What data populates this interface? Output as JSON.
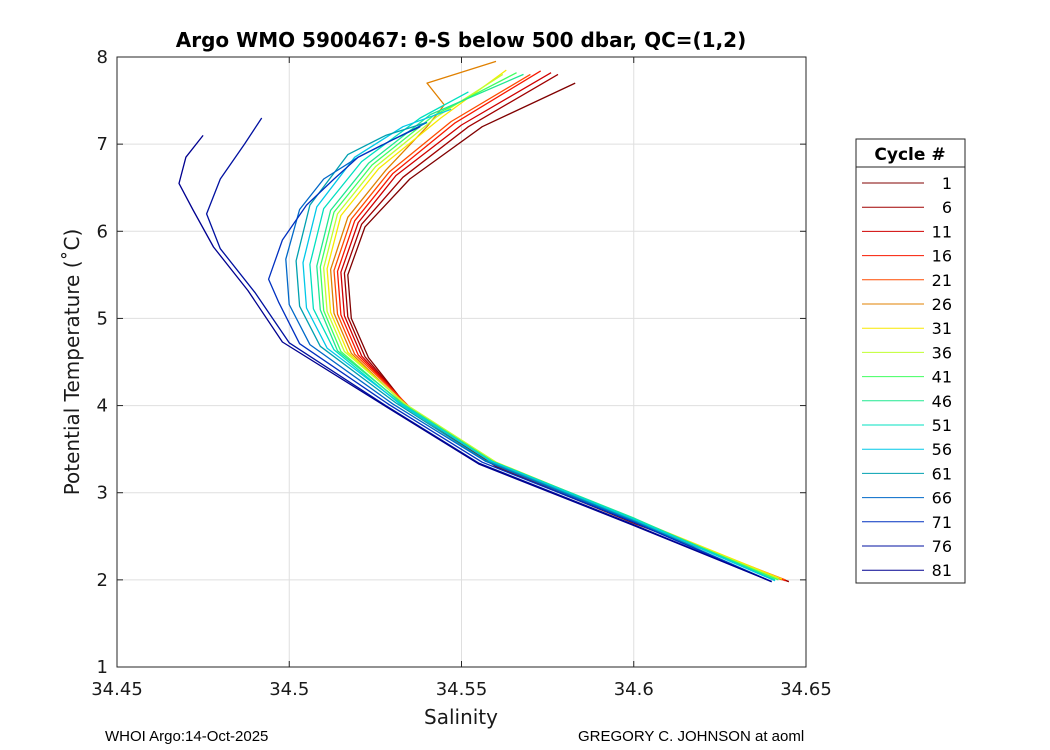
{
  "chart_data": {
    "type": "line",
    "title": "Argo WMO 5900467: θ-S below 500 dbar,  QC=(1,2)",
    "xlabel": "Salinity",
    "ylabel": "Potential Temperature (˚C)",
    "xlim": [
      34.45,
      34.65
    ],
    "ylim": [
      1,
      8
    ],
    "xticks": [
      34.45,
      34.5,
      34.55,
      34.6,
      34.65
    ],
    "xtick_labels": [
      "34.45",
      "34.5",
      "34.55",
      "34.6",
      "34.65"
    ],
    "yticks": [
      1,
      2,
      3,
      4,
      5,
      6,
      7,
      8
    ],
    "ytick_labels": [
      "1",
      "2",
      "3",
      "4",
      "5",
      "6",
      "7",
      "8"
    ],
    "grid": true,
    "legend_title": "Cycle #",
    "legend_position": "right",
    "series": [
      {
        "name": "1",
        "color": "#800000",
        "x": [
          34.645,
          34.6,
          34.56,
          34.535,
          34.523,
          34.518,
          34.517,
          34.522,
          34.535,
          34.556,
          34.583
        ],
        "y": [
          1.98,
          2.65,
          3.3,
          3.95,
          4.55,
          5.0,
          5.5,
          6.05,
          6.6,
          7.2,
          7.7
        ]
      },
      {
        "name": "6",
        "color": "#a00000",
        "x": [
          34.645,
          34.6,
          34.56,
          34.535,
          34.522,
          34.517,
          34.516,
          34.521,
          34.533,
          34.552,
          34.578
        ],
        "y": [
          1.98,
          2.66,
          3.31,
          3.96,
          4.56,
          5.02,
          5.52,
          6.08,
          6.62,
          7.2,
          7.8
        ]
      },
      {
        "name": "11",
        "color": "#d00000",
        "x": [
          34.644,
          34.6,
          34.56,
          34.535,
          34.521,
          34.516,
          34.515,
          34.52,
          34.531,
          34.55,
          34.576
        ],
        "y": [
          1.99,
          2.67,
          3.32,
          3.97,
          4.57,
          5.03,
          5.53,
          6.1,
          6.64,
          7.22,
          7.82
        ]
      },
      {
        "name": "16",
        "color": "#f81800",
        "x": [
          34.644,
          34.6,
          34.56,
          34.535,
          34.52,
          34.515,
          34.514,
          34.519,
          34.53,
          34.548,
          34.573
        ],
        "y": [
          1.99,
          2.67,
          3.32,
          3.98,
          4.58,
          5.04,
          5.54,
          6.12,
          6.66,
          7.24,
          7.84
        ]
      },
      {
        "name": "21",
        "color": "#ff4c00",
        "x": [
          34.644,
          34.6,
          34.56,
          34.535,
          34.519,
          34.514,
          34.513,
          34.518,
          34.529,
          34.547,
          34.57
        ],
        "y": [
          2.0,
          2.68,
          3.33,
          3.98,
          4.59,
          5.05,
          5.55,
          6.14,
          6.68,
          7.26,
          7.8
        ]
      },
      {
        "name": "26",
        "color": "#e08000",
        "x": [
          34.643,
          34.6,
          34.56,
          34.534,
          34.518,
          34.513,
          34.512,
          34.517,
          34.528,
          34.54,
          34.545,
          34.54,
          34.56
        ],
        "y": [
          2.0,
          2.69,
          3.34,
          3.99,
          4.6,
          5.06,
          5.56,
          6.16,
          6.7,
          7.2,
          7.45,
          7.7,
          7.95
        ]
      },
      {
        "name": "31",
        "color": "#f8e800",
        "x": [
          34.643,
          34.6,
          34.56,
          34.534,
          34.517,
          34.512,
          34.511,
          34.515,
          34.526,
          34.544,
          34.563
        ],
        "y": [
          2.01,
          2.7,
          3.35,
          4.0,
          4.61,
          5.07,
          5.57,
          6.18,
          6.72,
          7.3,
          7.85
        ]
      },
      {
        "name": "36",
        "color": "#c0ff30",
        "x": [
          34.642,
          34.6,
          34.56,
          34.534,
          34.516,
          34.511,
          34.51,
          34.514,
          34.525,
          34.543,
          34.562
        ],
        "y": [
          2.01,
          2.7,
          3.35,
          4.01,
          4.62,
          5.08,
          5.58,
          6.2,
          6.74,
          7.32,
          7.8
        ]
      },
      {
        "name": "41",
        "color": "#40ff60",
        "x": [
          34.642,
          34.6,
          34.559,
          34.533,
          34.515,
          34.51,
          34.509,
          34.513,
          34.524,
          34.542,
          34.566
        ],
        "y": [
          2.0,
          2.7,
          3.36,
          4.01,
          4.62,
          5.09,
          5.59,
          6.22,
          6.76,
          7.33,
          7.82
        ]
      },
      {
        "name": "46",
        "color": "#20e890",
        "x": [
          34.641,
          34.6,
          34.559,
          34.533,
          34.514,
          34.509,
          34.508,
          34.512,
          34.523,
          34.541,
          34.568
        ],
        "y": [
          2.0,
          2.71,
          3.36,
          4.02,
          4.63,
          5.1,
          5.6,
          6.24,
          6.78,
          7.34,
          7.8
        ]
      },
      {
        "name": "51",
        "color": "#00e0c0",
        "x": [
          34.641,
          34.6,
          34.558,
          34.532,
          34.513,
          34.507,
          34.506,
          34.51,
          34.521,
          34.538,
          34.552
        ],
        "y": [
          1.99,
          2.7,
          3.37,
          4.02,
          4.64,
          5.11,
          5.62,
          6.26,
          6.8,
          7.3,
          7.6
        ]
      },
      {
        "name": "56",
        "color": "#00c8e8",
        "x": [
          34.641,
          34.6,
          34.558,
          34.532,
          34.511,
          34.505,
          34.504,
          34.508,
          34.519,
          34.533,
          34.547
        ],
        "y": [
          1.99,
          2.69,
          3.37,
          4.03,
          4.66,
          5.12,
          5.64,
          6.28,
          6.85,
          7.2,
          7.4
        ]
      },
      {
        "name": "61",
        "color": "#00a0b0",
        "x": [
          34.64,
          34.6,
          34.557,
          34.531,
          34.509,
          34.503,
          34.502,
          34.506,
          34.517,
          34.528,
          34.54
        ],
        "y": [
          1.98,
          2.68,
          3.37,
          4.03,
          4.68,
          5.14,
          5.66,
          6.3,
          6.88,
          7.1,
          7.25
        ]
      },
      {
        "name": "66",
        "color": "#0068c8",
        "x": [
          34.64,
          34.6,
          34.557,
          34.53,
          34.506,
          34.5,
          34.499,
          34.503,
          34.51,
          34.52,
          34.53,
          34.54
        ],
        "y": [
          1.98,
          2.67,
          3.36,
          4.02,
          4.7,
          5.16,
          5.68,
          6.25,
          6.6,
          6.85,
          7.05,
          7.25
        ]
      },
      {
        "name": "71",
        "color": "#0030c0",
        "x": [
          34.64,
          34.6,
          34.556,
          34.529,
          34.503,
          34.497,
          34.494,
          34.498,
          34.505,
          34.513,
          34.52,
          34.53,
          34.538
        ],
        "y": [
          1.98,
          2.66,
          3.35,
          4.01,
          4.71,
          5.18,
          5.45,
          5.9,
          6.3,
          6.6,
          6.85,
          7.05,
          7.2
        ]
      },
      {
        "name": "76",
        "color": "#0010a0",
        "x": [
          34.64,
          34.599,
          34.555,
          34.528,
          34.5,
          34.49,
          34.48,
          34.476,
          34.48,
          34.487,
          34.492
        ],
        "y": [
          1.98,
          2.65,
          3.34,
          4.0,
          4.72,
          5.3,
          5.8,
          6.2,
          6.6,
          7.0,
          7.3
        ]
      },
      {
        "name": "81",
        "color": "#000090",
        "x": [
          34.64,
          34.599,
          34.555,
          34.528,
          34.498,
          34.488,
          34.478,
          34.472,
          34.468,
          34.47,
          34.475
        ],
        "y": [
          1.98,
          2.64,
          3.33,
          3.99,
          4.73,
          5.32,
          5.82,
          6.25,
          6.55,
          6.85,
          7.1
        ]
      }
    ]
  },
  "footer": {
    "left": "WHOI Argo:14-Oct-2025",
    "right": "GREGORY C. JOHNSON at aoml"
  }
}
